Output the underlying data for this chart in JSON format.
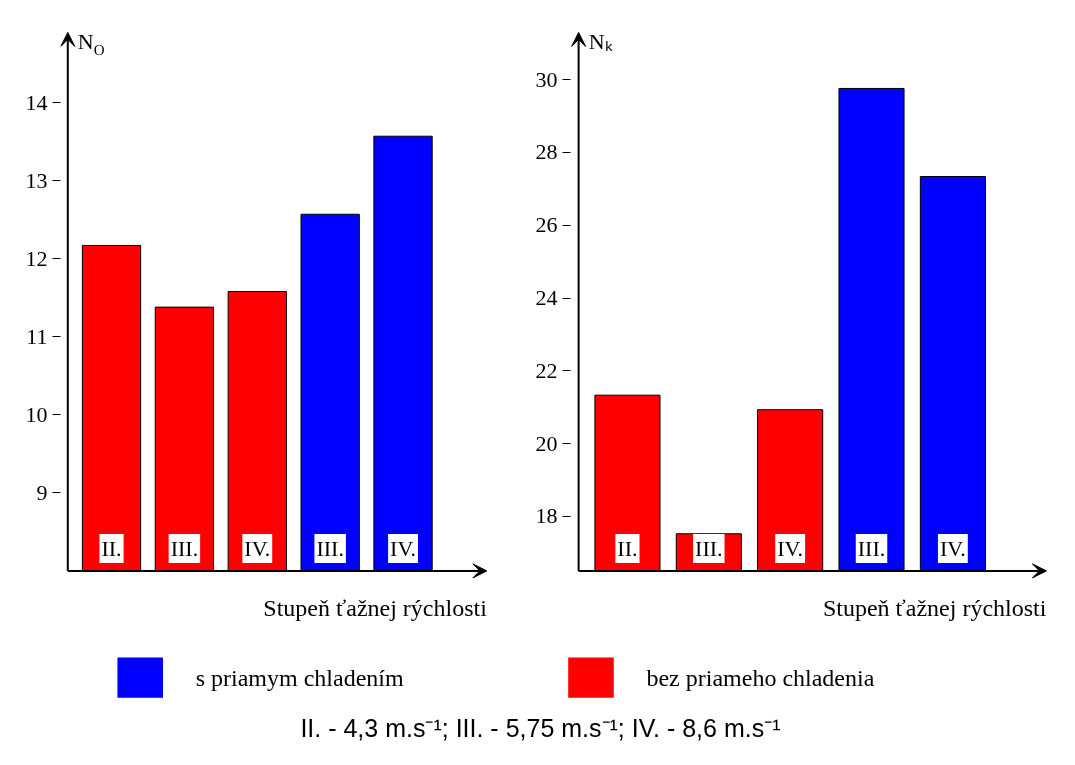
{
  "chart_data": [
    {
      "type": "bar",
      "categories": [
        "II.",
        "III.",
        "IV.",
        "III.",
        "IV."
      ],
      "ylabel": "N$_{O}$",
      "xlabel": "Stupeň ťažnej rýchlosti",
      "ylim": [
        8,
        14.9
      ],
      "yticks": [
        9,
        10,
        11,
        12,
        13,
        14
      ],
      "grid": false,
      "legend": "bottom",
      "series": [
        {
          "name": "s priamym chladením",
          "color": "#0000ff",
          "values": [
            null,
            null,
            null,
            12.57,
            13.57
          ]
        },
        {
          "name": "bez priameho chladenia",
          "color": "#ff0000",
          "values": [
            12.17,
            11.38,
            11.58,
            null,
            null
          ]
        }
      ],
      "annotations": [
        "II. - 4,3 m.s⁻¹; III. - 5,75 m.s⁻¹; IV. - 8,6 m.s⁻¹"
      ]
    },
    {
      "type": "bar",
      "categories": [
        "II.",
        "III.",
        "IV.",
        "III.",
        "IV."
      ],
      "ylabel": "Nₖ",
      "xlabel": "Stupeň ťažnej rýchlosti",
      "ylim": [
        16.5,
        31.3
      ],
      "yticks": [
        18,
        20,
        22,
        24,
        26,
        28,
        30
      ],
      "grid": false,
      "series": [
        {
          "color": "#0000ff",
          "values": [
            null,
            null,
            null,
            29.76,
            27.34
          ]
        },
        {
          "color": "#ff0000",
          "values": [
            21.33,
            17.52,
            20.93,
            null,
            null
          ]
        }
      ]
    }
  ]
}
